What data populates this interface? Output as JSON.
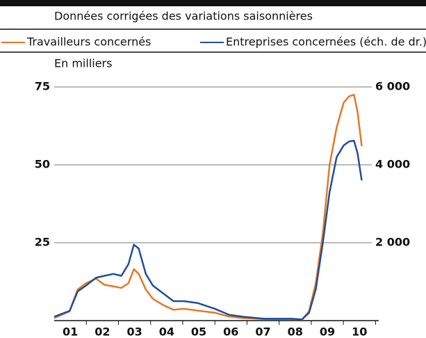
{
  "chart_data": {
    "type": "line",
    "subtitle": "Données corrigées des variations saisonnières",
    "y_label": "En milliers",
    "x": [
      1.0,
      1.48,
      1.73,
      1.99,
      2.3,
      2.56,
      2.84,
      3.09,
      3.31,
      3.48,
      3.63,
      3.85,
      4.07,
      4.39,
      4.71,
      5.04,
      5.47,
      6.01,
      6.44,
      6.87,
      7.52,
      8.39,
      8.71,
      8.93,
      9.14,
      9.36,
      9.57,
      9.79,
      10.01,
      10.18,
      10.33,
      10.44,
      10.57
    ],
    "series": [
      {
        "name": "Travailleurs concernés",
        "color": "#e87722",
        "axis": "y",
        "values": [
          0.8,
          3,
          10,
          12,
          13.5,
          11.5,
          11,
          10.5,
          12,
          16.5,
          15,
          10,
          7,
          5,
          3.5,
          3.8,
          3.2,
          2.5,
          1.3,
          0.8,
          0.5,
          0.5,
          0.3,
          3,
          12,
          28,
          50,
          62,
          70,
          72,
          72.5,
          67,
          56
        ]
      },
      {
        "name": "Entreprises concernées (éch. de dr.)",
        "color": "#1f4e9c",
        "axis": "y2",
        "values": [
          100,
          250,
          750,
          900,
          1100,
          1150,
          1200,
          1150,
          1450,
          1950,
          1850,
          1200,
          900,
          700,
          500,
          500,
          450,
          300,
          150,
          100,
          50,
          50,
          30,
          200,
          800,
          2000,
          3300,
          4200,
          4500,
          4600,
          4620,
          4300,
          3600
        ]
      }
    ],
    "xlim": [
      1,
      11.1
    ],
    "xticks": [
      {
        "value": 1.5,
        "label": "01"
      },
      {
        "value": 2.5,
        "label": "02"
      },
      {
        "value": 3.5,
        "label": "03"
      },
      {
        "value": 4.5,
        "label": "04"
      },
      {
        "value": 5.5,
        "label": "05"
      },
      {
        "value": 6.5,
        "label": "06"
      },
      {
        "value": 7.5,
        "label": "07"
      },
      {
        "value": 8.5,
        "label": "08"
      },
      {
        "value": 9.5,
        "label": "09"
      },
      {
        "value": 10.5,
        "label": "10"
      }
    ],
    "ylim": [
      0,
      75
    ],
    "yticks": [
      25,
      50,
      75
    ],
    "y2lim": [
      0,
      6000
    ],
    "y2ticks": [
      {
        "value": 2000,
        "label": "2 000"
      },
      {
        "value": 4000,
        "label": "4 000"
      },
      {
        "value": 6000,
        "label": "6 000"
      }
    ],
    "grid": true
  }
}
